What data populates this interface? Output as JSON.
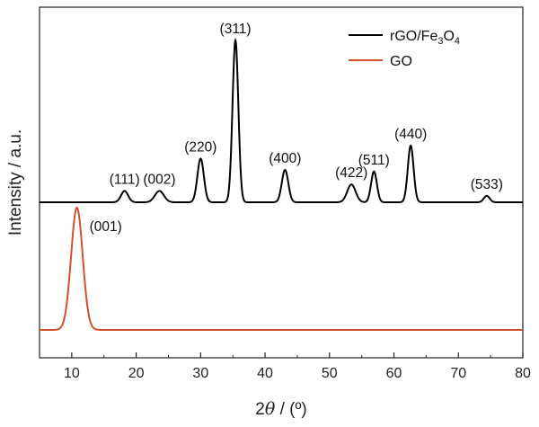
{
  "chart_data": {
    "type": "line",
    "xlabel_prefix": "2",
    "xlabel_theta": "θ",
    "xlabel_suffix": " / (º)",
    "ylabel": "Intensity / a.u.",
    "xlim": [
      5,
      80
    ],
    "x_ticks": [
      10,
      20,
      30,
      40,
      50,
      60,
      70,
      80
    ],
    "x_tick_labels": [
      "10",
      "20",
      "30",
      "40",
      "50",
      "60",
      "70",
      "80"
    ],
    "y_ticks_shown": false,
    "legend_position": "top-right",
    "series": [
      {
        "name_parts": [
          "rGO/Fe",
          "3",
          "O",
          "4"
        ],
        "color": "#000000",
        "peaks": [
          {
            "x": 18.2,
            "height": 0.07,
            "width": 0.55,
            "label": "(111)"
          },
          {
            "x": 23.6,
            "height": 0.07,
            "width": 0.7,
            "label": "(002)"
          },
          {
            "x": 30.0,
            "height": 0.27,
            "width": 0.5,
            "label": "(220)"
          },
          {
            "x": 35.4,
            "height": 1.0,
            "width": 0.45,
            "label": "(311)"
          },
          {
            "x": 43.1,
            "height": 0.2,
            "width": 0.5,
            "label": "(400)"
          },
          {
            "x": 53.4,
            "height": 0.11,
            "width": 0.65,
            "label": "(422)"
          },
          {
            "x": 56.9,
            "height": 0.19,
            "width": 0.45,
            "label": "(511)"
          },
          {
            "x": 62.6,
            "height": 0.35,
            "width": 0.45,
            "label": "(440)"
          },
          {
            "x": 74.4,
            "height": 0.04,
            "width": 0.45,
            "label": "(533)"
          }
        ]
      },
      {
        "name": "GO",
        "color": "#d4502a",
        "peaks": [
          {
            "x": 10.8,
            "height": 1.0,
            "width": 0.9,
            "label": "(001)"
          }
        ]
      }
    ]
  }
}
